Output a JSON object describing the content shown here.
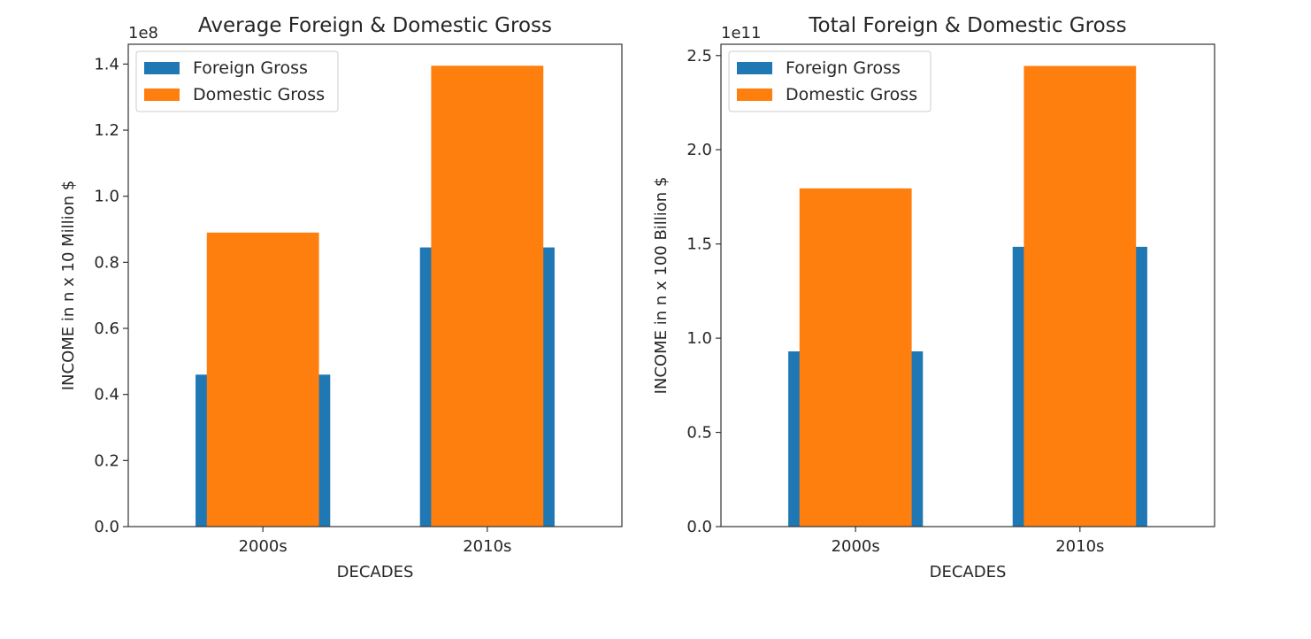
{
  "chart_data": [
    {
      "type": "bar",
      "title": "Average Foreign & Domestic Gross",
      "xlabel": "DECADES",
      "ylabel": "INCOME in n x 10 Million $",
      "offset_text": "1e8",
      "categories": [
        "2000s",
        "2010s"
      ],
      "ylim": [
        0,
        1.46
      ],
      "yticks": [
        "0.0",
        "0.2",
        "0.4",
        "0.6",
        "0.8",
        "1.0",
        "1.2",
        "1.4"
      ],
      "ytick_values": [
        0,
        0.2,
        0.4,
        0.6,
        0.8,
        1.0,
        1.2,
        1.4
      ],
      "legend_position": "upper-left",
      "grid": false,
      "series": [
        {
          "name": "Foreign Gross",
          "color": "#1f77b4",
          "values": [
            0.46,
            0.845
          ],
          "bar_width": 0.6
        },
        {
          "name": "Domestic Gross",
          "color": "#ff7f0e",
          "values": [
            0.89,
            1.395
          ],
          "bar_width": 0.5
        }
      ]
    },
    {
      "type": "bar",
      "title": "Total Foreign & Domestic Gross",
      "xlabel": "DECADES",
      "ylabel": "INCOME in n x 100 Billion $",
      "offset_text": "1e11",
      "categories": [
        "2000s",
        "2010s"
      ],
      "ylim": [
        0,
        2.56
      ],
      "yticks": [
        "0.0",
        "0.5",
        "1.0",
        "1.5",
        "2.0",
        "2.5"
      ],
      "ytick_values": [
        0,
        0.5,
        1.0,
        1.5,
        2.0,
        2.5
      ],
      "legend_position": "upper-left",
      "grid": false,
      "series": [
        {
          "name": "Foreign Gross",
          "color": "#1f77b4",
          "values": [
            0.93,
            1.485
          ],
          "bar_width": 0.6
        },
        {
          "name": "Domestic Gross",
          "color": "#ff7f0e",
          "values": [
            1.795,
            2.445
          ],
          "bar_width": 0.5
        }
      ]
    }
  ]
}
